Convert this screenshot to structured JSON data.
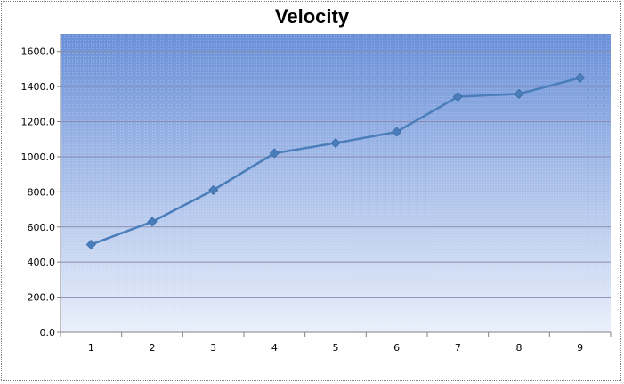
{
  "chart_data": {
    "type": "line",
    "title": "Velocity",
    "xlabel": "",
    "ylabel": "",
    "categories": [
      "1",
      "2",
      "3",
      "4",
      "5",
      "6",
      "7",
      "8",
      "9"
    ],
    "series": [
      {
        "values": [
          500,
          630,
          810,
          1020,
          1078,
          1142,
          1342,
          1358,
          1450
        ],
        "color": "#4a7ebb"
      }
    ],
    "ylim": [
      0,
      1700
    ],
    "yticks": [
      "0.0",
      "200.0",
      "400.0",
      "600.0",
      "800.0",
      "1000.0",
      "1200.0",
      "1400.0",
      "1600.0"
    ],
    "ytick_values": [
      0,
      200,
      400,
      600,
      800,
      1000,
      1200,
      1400,
      1600
    ],
    "grid": true,
    "legend": "none",
    "plot_gradient": [
      "#6a90d8",
      "#eaf0fb"
    ],
    "gridline_color": "#8c8cb0"
  }
}
